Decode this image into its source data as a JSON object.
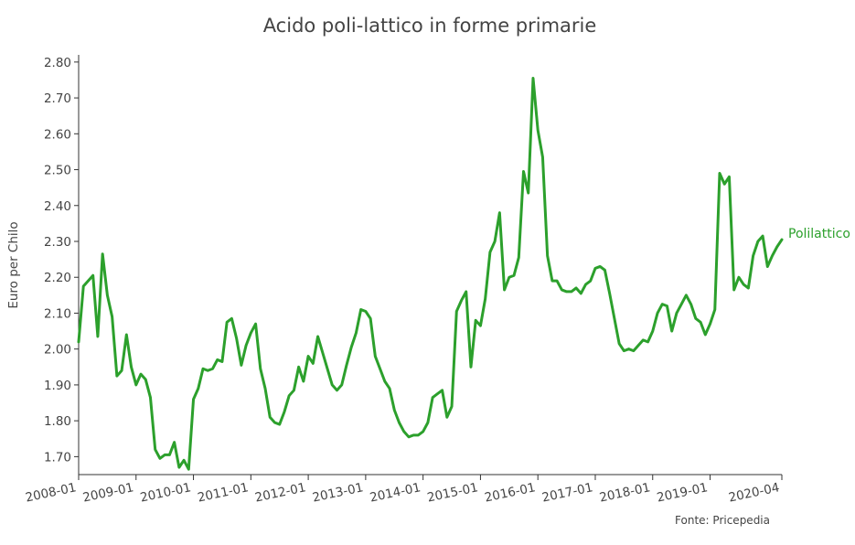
{
  "chart_data": {
    "type": "line",
    "title": "Acido poli-lattico in forme primarie",
    "ylabel": "Euro per Chilo",
    "xlabel": "",
    "source": "Fonte: Pricepedia",
    "x_start": "2008-01",
    "x_end": "2020-04",
    "ylim": [
      1.65,
      2.82
    ],
    "yticks": [
      "1.70",
      "1.80",
      "1.90",
      "2.00",
      "2.10",
      "2.20",
      "2.30",
      "2.40",
      "2.50",
      "2.60",
      "2.70",
      "2.80"
    ],
    "xticks": [
      "2008-01",
      "2009-01",
      "2010-01",
      "2011-01",
      "2012-01",
      "2013-01",
      "2014-01",
      "2015-01",
      "2016-01",
      "2017-01",
      "2018-01",
      "2019-01",
      "2020-04"
    ],
    "grid": false,
    "legend": "end-of-line label",
    "colors": {
      "series": "#2ca02c",
      "text": "#444444",
      "axis": "#333333"
    },
    "series": [
      {
        "name": "Polilattico",
        "values": [
          2.02,
          2.175,
          2.19,
          2.205,
          2.035,
          2.265,
          2.15,
          2.09,
          1.925,
          1.94,
          2.04,
          1.95,
          1.9,
          1.93,
          1.915,
          1.865,
          1.72,
          1.695,
          1.705,
          1.705,
          1.74,
          1.67,
          1.69,
          1.665,
          1.86,
          1.89,
          1.945,
          1.94,
          1.945,
          1.97,
          1.965,
          2.075,
          2.085,
          2.03,
          1.955,
          2.01,
          2.045,
          2.07,
          1.945,
          1.89,
          1.81,
          1.795,
          1.79,
          1.825,
          1.87,
          1.885,
          1.95,
          1.91,
          1.98,
          1.96,
          2.035,
          1.99,
          1.945,
          1.9,
          1.885,
          1.9,
          1.955,
          2.005,
          2.045,
          2.11,
          2.105,
          2.085,
          1.98,
          1.945,
          1.91,
          1.89,
          1.83,
          1.795,
          1.77,
          1.755,
          1.76,
          1.76,
          1.77,
          1.795,
          1.865,
          1.875,
          1.885,
          1.81,
          1.84,
          2.105,
          2.135,
          2.16,
          1.95,
          2.08,
          2.065,
          2.14,
          2.27,
          2.3,
          2.38,
          2.165,
          2.2,
          2.205,
          2.255,
          2.495,
          2.435,
          2.755,
          2.61,
          2.535,
          2.26,
          2.19,
          2.19,
          2.165,
          2.16,
          2.16,
          2.17,
          2.155,
          2.18,
          2.19,
          2.225,
          2.23,
          2.22,
          2.155,
          2.085,
          2.015,
          1.995,
          2.0,
          1.995,
          2.01,
          2.025,
          2.02,
          2.05,
          2.1,
          2.125,
          2.12,
          2.05,
          2.1,
          2.125,
          2.15,
          2.125,
          2.085,
          2.075,
          2.04,
          2.07,
          2.11,
          2.49,
          2.46,
          2.48,
          2.165,
          2.2,
          2.18,
          2.17,
          2.26,
          2.3,
          2.315,
          2.23,
          2.26,
          2.285,
          2.305
        ]
      }
    ]
  }
}
